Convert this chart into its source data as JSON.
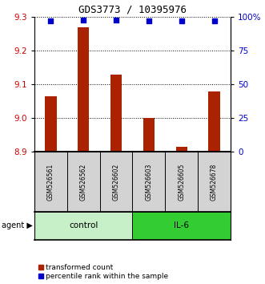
{
  "title": "GDS3773 / 10395976",
  "samples": [
    "GSM526561",
    "GSM526562",
    "GSM526602",
    "GSM526603",
    "GSM526605",
    "GSM526678"
  ],
  "red_values": [
    9.065,
    9.27,
    9.13,
    9.0,
    8.915,
    9.08
  ],
  "blue_values": [
    97,
    98,
    98,
    97,
    97,
    97
  ],
  "ylim_left": [
    8.9,
    9.3
  ],
  "ylim_right": [
    0,
    100
  ],
  "yticks_left": [
    8.9,
    9.0,
    9.1,
    9.2,
    9.3
  ],
  "yticks_right": [
    0,
    25,
    50,
    75,
    100
  ],
  "ytick_labels_right": [
    "0",
    "25",
    "50",
    "75",
    "100%"
  ],
  "control_group": [
    0,
    1,
    2
  ],
  "il6_group": [
    3,
    4,
    5
  ],
  "control_color": "#c8f0c8",
  "il6_color": "#33cc33",
  "control_label": "control",
  "il6_label": "IL-6",
  "agent_label": "agent",
  "bar_color": "#aa2200",
  "dot_color": "#0000cc",
  "legend_bar_label": "transformed count",
  "legend_dot_label": "percentile rank within the sample",
  "tick_label_color_left": "#cc0000",
  "tick_label_color_right": "#0000cc",
  "bar_bottom": 8.9,
  "bar_width": 0.35
}
